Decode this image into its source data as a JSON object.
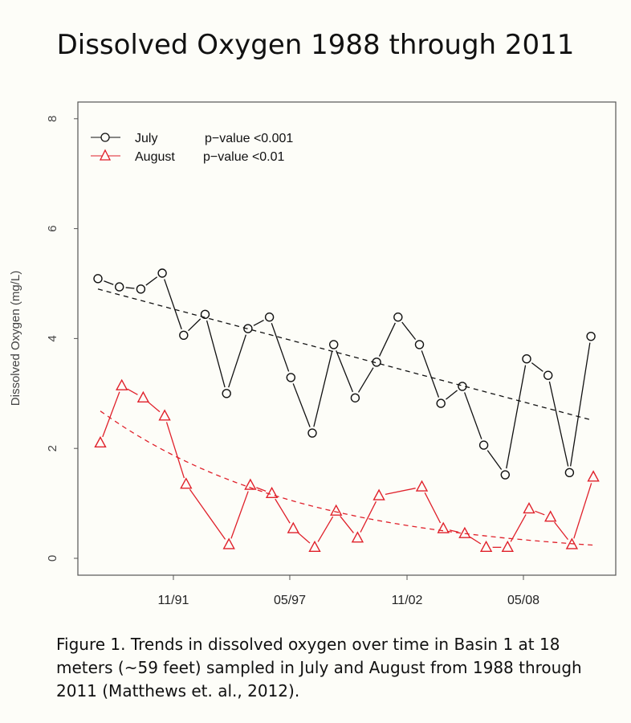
{
  "chart_data": {
    "type": "line",
    "title": "Dissolved Oxygen 1988 through 2011",
    "xlabel": "",
    "ylabel": "Dissolved Oxygen (mg/L)",
    "ylim": [
      0,
      8
    ],
    "xlim": [
      1987.0,
      2012.2
    ],
    "yticks": [
      0,
      2,
      4,
      6,
      8
    ],
    "xticks": [
      {
        "label": "11/91",
        "x": 1991.52
      },
      {
        "label": "05/97",
        "x": 1996.95
      },
      {
        "label": "11/02",
        "x": 2002.42
      },
      {
        "label": "05/08",
        "x": 2007.85
      }
    ],
    "legend_position": "top-left",
    "series": [
      {
        "name": "July",
        "pvalue": "p−value <0.001",
        "color": "#111111",
        "marker": "circle",
        "x": [
          1988,
          1989,
          1990,
          1991,
          1992,
          1993,
          1994,
          1995,
          1996,
          1997,
          1998,
          1999,
          2000,
          2001,
          2002,
          2003,
          2004,
          2005,
          2006,
          2007,
          2008,
          2009,
          2010,
          2011
        ],
        "values": [
          5.09,
          4.94,
          4.9,
          5.19,
          4.06,
          4.44,
          3.0,
          4.18,
          4.39,
          3.29,
          2.28,
          3.89,
          2.92,
          3.57,
          4.39,
          3.89,
          2.82,
          3.13,
          2.06,
          1.52,
          3.63,
          3.33,
          1.56,
          4.04
        ],
        "trend": {
          "type": "linear",
          "start": 4.9,
          "end": 2.52
        }
      },
      {
        "name": "August",
        "pvalue": "p−value <0.01",
        "color": "#e0202a",
        "marker": "triangle",
        "x": [
          1988,
          1989,
          1990,
          1991,
          1992,
          1994,
          1995,
          1996,
          1997,
          1998,
          1999,
          2000,
          2001,
          2003,
          2004,
          2005,
          2006,
          2007,
          2008,
          2009,
          2010,
          2011
        ],
        "values": [
          2.1,
          3.14,
          2.92,
          2.59,
          1.35,
          0.25,
          1.33,
          1.18,
          0.54,
          0.2,
          0.86,
          0.37,
          1.14,
          1.3,
          0.54,
          0.45,
          0.2,
          0.2,
          0.9,
          0.75,
          0.25,
          1.48
        ],
        "trend": {
          "type": "exponential",
          "start": 2.68,
          "end": 0.24
        }
      }
    ]
  },
  "caption": "Figure 1. Trends in dissolved oxygen over time in Basin 1 at 18 meters (~59 feet) sampled in July and August from 1988 through 2011 (Matthews et. al., 2012)."
}
